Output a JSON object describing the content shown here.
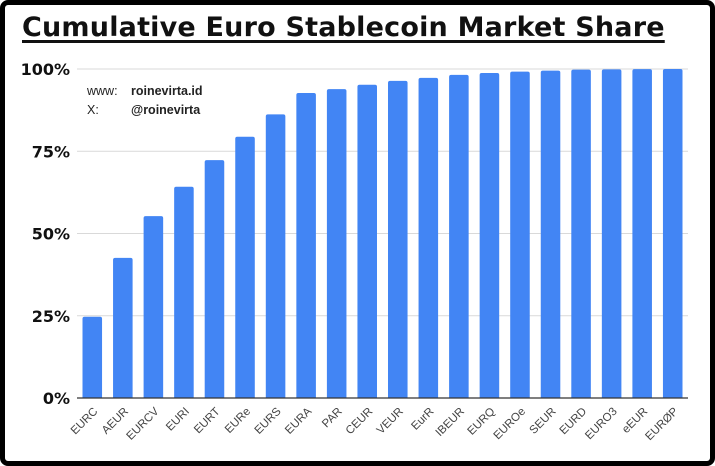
{
  "title": "Cumulative Euro Stablecoin Market Share",
  "credits": {
    "www_label": "www:",
    "www_value": "roinevirta.id",
    "x_label": "X:",
    "x_value": "@roinevirta"
  },
  "chart_data": {
    "type": "bar",
    "title": "Cumulative Euro Stablecoin Market Share",
    "xlabel": "",
    "ylabel": "",
    "ylim": [
      0,
      100
    ],
    "yticks": [
      "0%",
      "25%",
      "50%",
      "75%",
      "100%"
    ],
    "grid": true,
    "color": "#4285f4",
    "categories": [
      "EURC",
      "AEUR",
      "EURCV",
      "EURI",
      "EURT",
      "EURe",
      "EURS",
      "EURA",
      "PAR",
      "CEUR",
      "VEUR",
      "EurR",
      "IBEUR",
      "EURQ",
      "EUROe",
      "SEUR",
      "EURD",
      "EURO3",
      "eEUR",
      "EURØP"
    ],
    "values": [
      24.7,
      42.6,
      55.3,
      64.2,
      72.3,
      79.4,
      86.2,
      92.7,
      93.9,
      95.2,
      96.4,
      97.3,
      98.2,
      98.8,
      99.2,
      99.5,
      99.8,
      99.9,
      99.95,
      100
    ]
  }
}
